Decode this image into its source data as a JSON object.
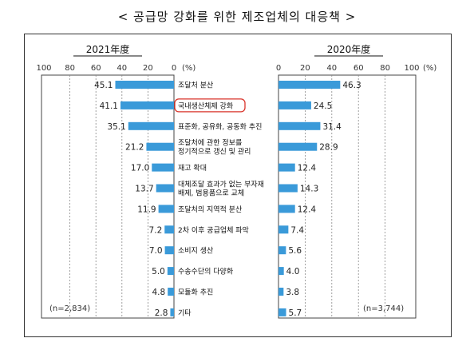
{
  "title": "< 공급망 강화를 위한 제조업체의 대응책 >",
  "chart_data": {
    "type": "bar",
    "unit": "(%)",
    "categories": [
      [
        "조달처 분산"
      ],
      [
        "국내생산체제 강화"
      ],
      [
        "표준화, 공유화, 공동화 추진"
      ],
      [
        "조달처에 관한 정보를",
        "정기적으로 갱신 및 관리"
      ],
      [
        "재고 확대"
      ],
      [
        "대체조달 효과가 없는 부자재",
        "배제, 범용품으로 교체"
      ],
      [
        "조달처의 지역적 분산"
      ],
      [
        "2차 이후 공급업체 파악"
      ],
      [
        "소비지 생산"
      ],
      [
        "수송수단의 다양화"
      ],
      [
        "모듈화 추진"
      ],
      [
        "기타"
      ]
    ],
    "highlight_index": 1,
    "series": [
      {
        "name": "2021年度",
        "n_label": "(n=2,834)",
        "values": [
          45.1,
          41.1,
          35.1,
          21.2,
          17.0,
          13.7,
          11.9,
          7.2,
          7.0,
          5.0,
          4.8,
          2.8
        ],
        "value_labels": [
          "45.1",
          "41.1",
          "35.1",
          "21.2",
          "17.0",
          "13.7",
          "11.9",
          "7.2",
          "7.0",
          "5.0",
          "4.8",
          "2.8"
        ]
      },
      {
        "name": "2020年度",
        "n_label": "(n=3,744)",
        "values": [
          46.3,
          24.5,
          31.4,
          28.9,
          12.4,
          14.3,
          12.4,
          7.4,
          5.6,
          4.0,
          3.8,
          5.7
        ],
        "value_labels": [
          "46.3",
          "24.5",
          "31.4",
          "28.9",
          "12.4",
          "14.3",
          "12.4",
          "7.4",
          "5.6",
          "4.0",
          "3.8",
          "5.7"
        ]
      }
    ],
    "left_ticks": [
      "100",
      "80",
      "60",
      "40",
      "20",
      "0"
    ],
    "right_ticks": [
      "0",
      "20",
      "40",
      "60",
      "80",
      "100"
    ],
    "xlim": [
      0,
      100
    ],
    "grid": true,
    "bar_color": "#3a9ad9",
    "highlight_color": "#d9342b"
  }
}
